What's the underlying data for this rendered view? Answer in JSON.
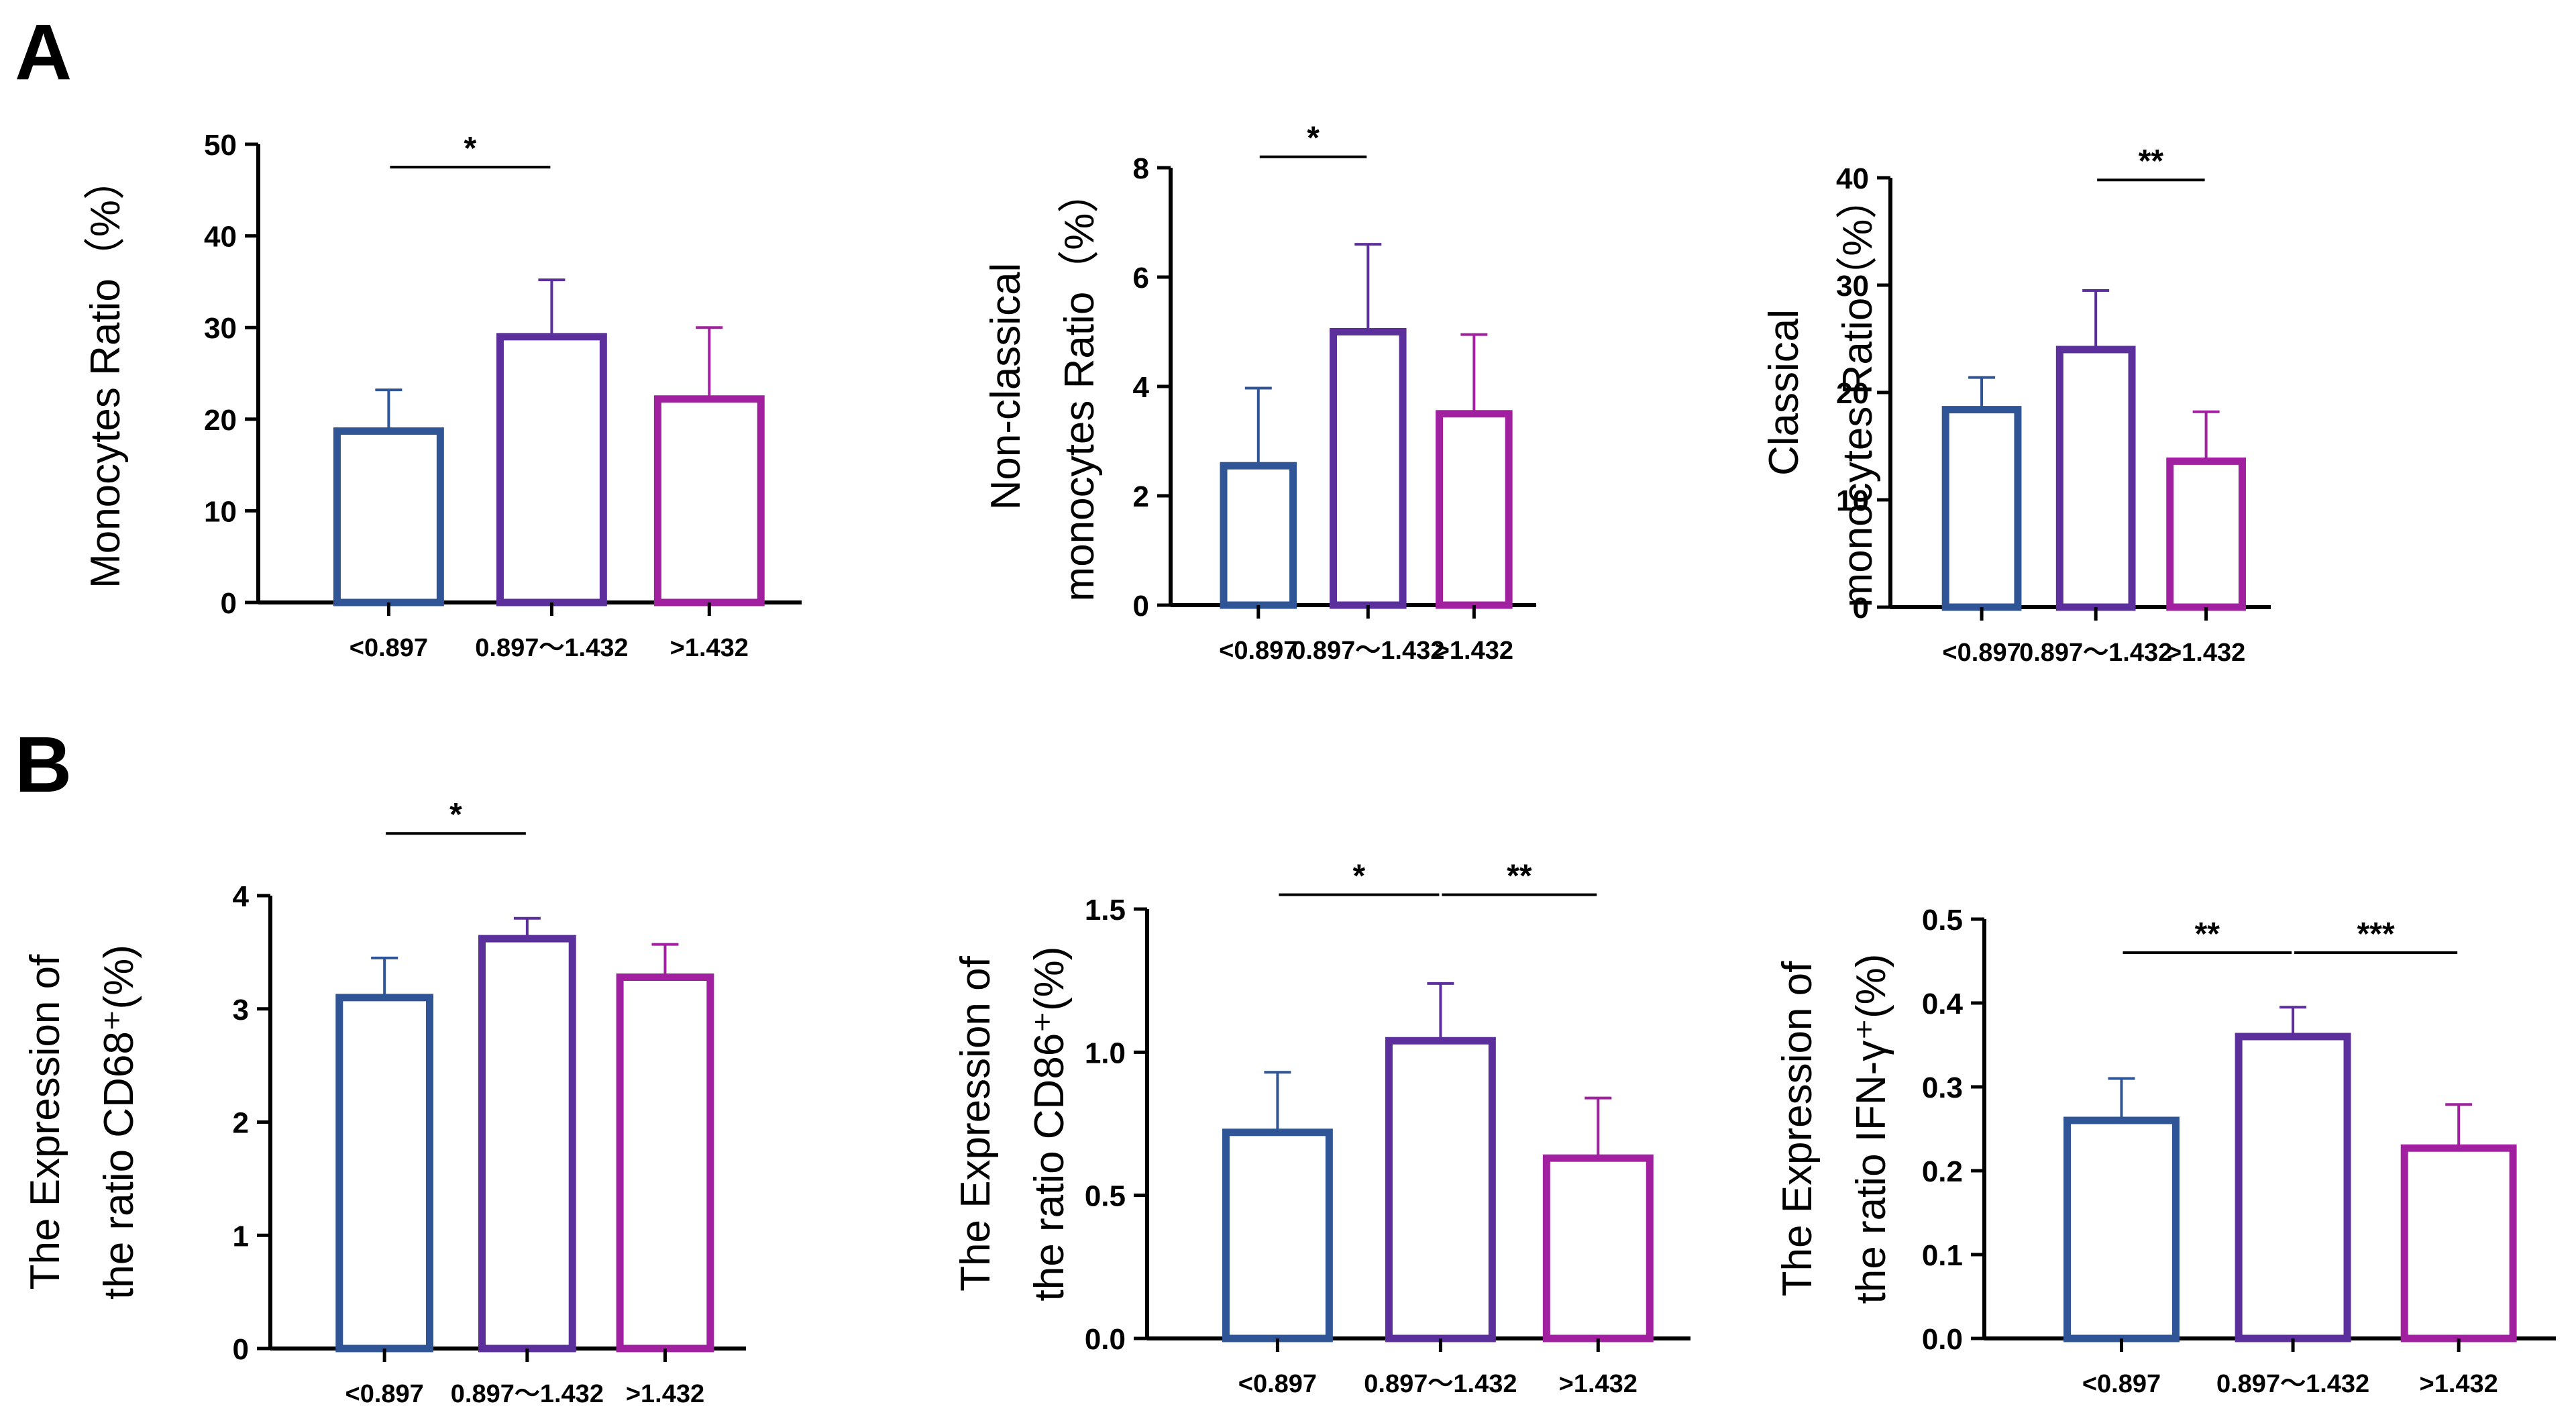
{
  "panels": {
    "A": "A",
    "B": "B"
  },
  "colors": {
    "group1": "#2f5597",
    "group2": "#5b2f9c",
    "group3": "#a020a0",
    "axis": "#000000"
  },
  "chart_data": [
    {
      "type": "bar",
      "panel": "A",
      "categories": [
        "<0.897",
        "0.897～1.432",
        ">1.432"
      ],
      "values": [
        18.7,
        29.0,
        22.2
      ],
      "errors": [
        4.5,
        6.2,
        7.8
      ],
      "ylabel_lines": [
        "Monocytes Ratio（%）"
      ],
      "ylim": [
        0,
        50
      ],
      "yticks": [
        0,
        10,
        20,
        30,
        40,
        50
      ],
      "tick_labels": [
        "0",
        "10",
        "20",
        "30",
        "40",
        "50"
      ],
      "significance": [
        {
          "from": 0,
          "to": 1,
          "label": "*",
          "y": 47.5
        }
      ]
    },
    {
      "type": "bar",
      "panel": "A",
      "categories": [
        "<0.897",
        "0.897～1.432",
        ">1.432"
      ],
      "values": [
        2.55,
        5.0,
        3.5
      ],
      "errors": [
        1.42,
        1.6,
        1.45
      ],
      "ylabel_lines": [
        "Non-classical",
        "monocytes Ratio（%）"
      ],
      "ylim": [
        0,
        8
      ],
      "yticks": [
        0,
        2,
        4,
        6,
        8
      ],
      "tick_labels": [
        "0",
        "2",
        "4",
        "6",
        "8"
      ],
      "significance": [
        {
          "from": 0,
          "to": 1,
          "label": "*",
          "y": 8.2
        }
      ]
    },
    {
      "type": "bar",
      "panel": "A",
      "categories": [
        "<0.897",
        "0.897～1.432",
        ">1.432"
      ],
      "values": [
        18.4,
        24.0,
        13.6
      ],
      "errors": [
        3.0,
        5.5,
        4.6
      ],
      "ylabel_lines": [
        "Classical",
        "monocytes Ratio（%）"
      ],
      "ylim": [
        0,
        40
      ],
      "yticks": [
        0,
        10,
        20,
        30,
        40
      ],
      "tick_labels": [
        "0",
        "10",
        "20",
        "30",
        "40"
      ],
      "significance": [
        {
          "from": 1,
          "to": 2,
          "label": "**",
          "y": 39.8
        }
      ]
    },
    {
      "type": "bar",
      "panel": "B",
      "categories": [
        "<0.897",
        "0.897～1.432",
        ">1.432"
      ],
      "values": [
        3.1,
        3.62,
        3.28
      ],
      "errors": [
        0.35,
        0.18,
        0.29
      ],
      "ylabel_lines": [
        "The Expression of",
        "the ratio CD68⁺(%)"
      ],
      "ylim": [
        0,
        4
      ],
      "yticks": [
        0,
        1,
        2,
        3,
        4
      ],
      "tick_labels": [
        "0",
        "1",
        "2",
        "3",
        "4"
      ],
      "significance": [
        {
          "from": 0,
          "to": 1,
          "label": "*",
          "y": 4.55
        }
      ]
    },
    {
      "type": "bar",
      "panel": "B",
      "categories": [
        "<0.897",
        "0.897～1.432",
        ">1.432"
      ],
      "values": [
        0.72,
        1.04,
        0.63
      ],
      "errors": [
        0.21,
        0.2,
        0.21
      ],
      "ylabel_lines": [
        "The Expression of",
        "the ratio CD86⁺(%)"
      ],
      "ylim": [
        0,
        1.5
      ],
      "yticks": [
        0,
        0.5,
        1.0,
        1.5
      ],
      "tick_labels": [
        "0.0",
        "0.5",
        "1.0",
        "1.5"
      ],
      "significance": [
        {
          "from": 0,
          "to": 1,
          "label": "*",
          "y": 1.55
        },
        {
          "from": 1,
          "to": 2,
          "label": "**",
          "y": 1.55
        }
      ]
    },
    {
      "type": "bar",
      "panel": "B",
      "categories": [
        "<0.897",
        "0.897～1.432",
        ">1.432"
      ],
      "values": [
        0.26,
        0.36,
        0.227
      ],
      "errors": [
        0.05,
        0.035,
        0.052
      ],
      "ylabel_lines": [
        "The Expression of",
        "the ratio IFN-γ⁺(%)"
      ],
      "ylim": [
        0,
        0.5
      ],
      "yticks": [
        0,
        0.1,
        0.2,
        0.3,
        0.4,
        0.5
      ],
      "tick_labels": [
        "0.0",
        "0.1",
        "0.2",
        "0.3",
        "0.4",
        "0.5"
      ],
      "significance": [
        {
          "from": 0,
          "to": 1,
          "label": "**",
          "y": 0.46
        },
        {
          "from": 1,
          "to": 2,
          "label": "***",
          "y": 0.46
        }
      ]
    }
  ]
}
